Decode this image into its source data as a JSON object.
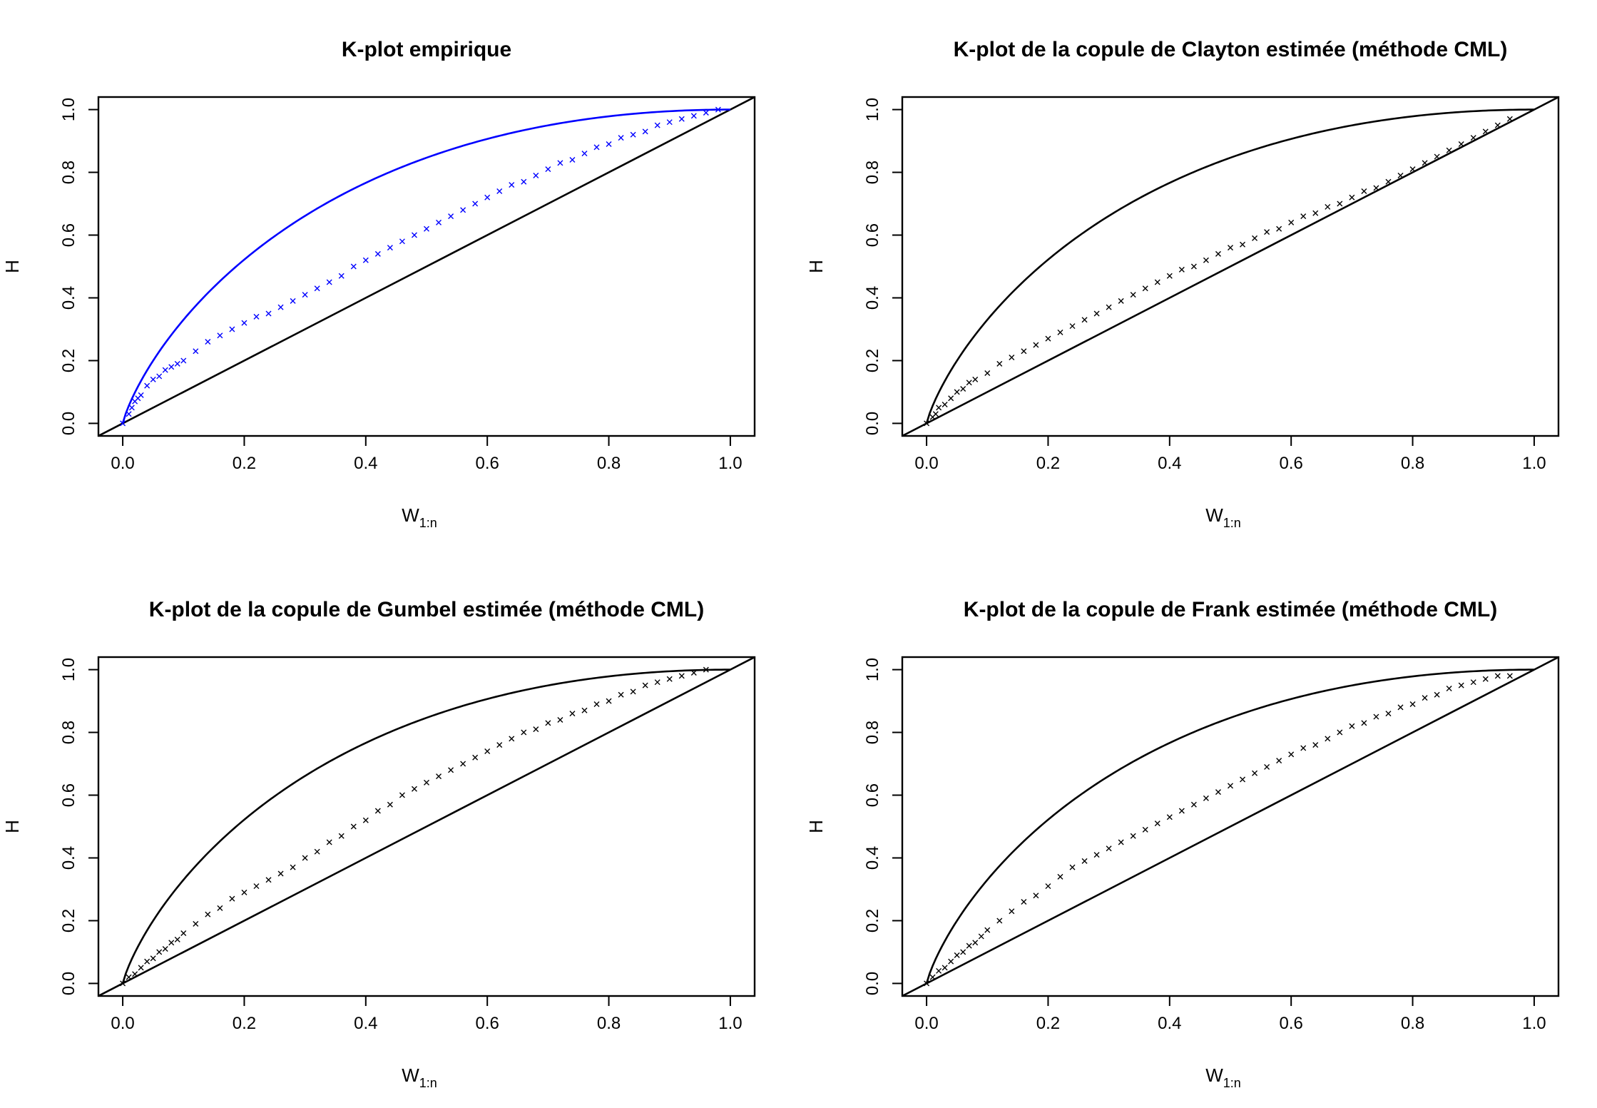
{
  "chart_data": [
    {
      "type": "scatter",
      "title": "K-plot empirique",
      "xlabel": "W",
      "xlabel_sub": "1:n",
      "ylabel": "H",
      "xlim": [
        -0.04,
        1.04
      ],
      "ylim": [
        -0.04,
        1.04
      ],
      "xticks": [
        "0.0",
        "0.2",
        "0.4",
        "0.6",
        "0.8",
        "1.0"
      ],
      "yticks": [
        "0.0",
        "0.2",
        "0.4",
        "0.6",
        "0.8",
        "1.0"
      ],
      "color": "#0000ff",
      "grid": false,
      "reference_lines": [
        "identity",
        "K0 bound"
      ],
      "series": [
        {
          "x": [
            0.0,
            0.01,
            0.015,
            0.02,
            0.025,
            0.03,
            0.04,
            0.05,
            0.06,
            0.07,
            0.08,
            0.09,
            0.1,
            0.12,
            0.14,
            0.16,
            0.18,
            0.2,
            0.22,
            0.24,
            0.26,
            0.28,
            0.3,
            0.32,
            0.34,
            0.36,
            0.38,
            0.4,
            0.42,
            0.44,
            0.46,
            0.48,
            0.5,
            0.52,
            0.54,
            0.56,
            0.58,
            0.6,
            0.62,
            0.64,
            0.66,
            0.68,
            0.7,
            0.72,
            0.74,
            0.76,
            0.78,
            0.8,
            0.82,
            0.84,
            0.86,
            0.88,
            0.9,
            0.92,
            0.94,
            0.96,
            0.98
          ],
          "y": [
            0.0,
            0.03,
            0.05,
            0.07,
            0.08,
            0.09,
            0.12,
            0.14,
            0.15,
            0.17,
            0.18,
            0.19,
            0.2,
            0.23,
            0.26,
            0.28,
            0.3,
            0.32,
            0.34,
            0.35,
            0.37,
            0.39,
            0.41,
            0.43,
            0.45,
            0.47,
            0.5,
            0.52,
            0.54,
            0.56,
            0.58,
            0.6,
            0.62,
            0.64,
            0.66,
            0.68,
            0.7,
            0.72,
            0.74,
            0.76,
            0.77,
            0.79,
            0.81,
            0.83,
            0.84,
            0.86,
            0.88,
            0.89,
            0.91,
            0.92,
            0.93,
            0.95,
            0.96,
            0.97,
            0.98,
            0.99,
            1.0
          ]
        }
      ]
    },
    {
      "type": "scatter",
      "title": "K-plot de la copule de Clayton estimée (méthode CML)",
      "xlabel": "W",
      "xlabel_sub": "1:n",
      "ylabel": "H",
      "xlim": [
        -0.04,
        1.04
      ],
      "ylim": [
        -0.04,
        1.04
      ],
      "xticks": [
        "0.0",
        "0.2",
        "0.4",
        "0.6",
        "0.8",
        "1.0"
      ],
      "yticks": [
        "0.0",
        "0.2",
        "0.4",
        "0.6",
        "0.8",
        "1.0"
      ],
      "color": "#000000",
      "grid": false,
      "reference_lines": [
        "identity",
        "K0 bound"
      ],
      "series": [
        {
          "x": [
            0.0,
            0.01,
            0.015,
            0.02,
            0.03,
            0.04,
            0.05,
            0.06,
            0.07,
            0.08,
            0.1,
            0.12,
            0.14,
            0.16,
            0.18,
            0.2,
            0.22,
            0.24,
            0.26,
            0.28,
            0.3,
            0.32,
            0.34,
            0.36,
            0.38,
            0.4,
            0.42,
            0.44,
            0.46,
            0.48,
            0.5,
            0.52,
            0.54,
            0.56,
            0.58,
            0.6,
            0.62,
            0.64,
            0.66,
            0.68,
            0.7,
            0.72,
            0.74,
            0.76,
            0.78,
            0.8,
            0.82,
            0.84,
            0.86,
            0.88,
            0.9,
            0.92,
            0.94,
            0.96
          ],
          "y": [
            0.0,
            0.02,
            0.03,
            0.05,
            0.06,
            0.08,
            0.1,
            0.11,
            0.13,
            0.14,
            0.16,
            0.19,
            0.21,
            0.23,
            0.25,
            0.27,
            0.29,
            0.31,
            0.33,
            0.35,
            0.37,
            0.39,
            0.41,
            0.43,
            0.45,
            0.47,
            0.49,
            0.5,
            0.52,
            0.54,
            0.56,
            0.57,
            0.59,
            0.61,
            0.62,
            0.64,
            0.66,
            0.67,
            0.69,
            0.7,
            0.72,
            0.74,
            0.75,
            0.77,
            0.79,
            0.81,
            0.83,
            0.85,
            0.87,
            0.89,
            0.91,
            0.93,
            0.95,
            0.97
          ]
        }
      ]
    },
    {
      "type": "scatter",
      "title": "K-plot de la copule de Gumbel estimée (méthode CML)",
      "xlabel": "W",
      "xlabel_sub": "1:n",
      "ylabel": "H",
      "xlim": [
        -0.04,
        1.04
      ],
      "ylim": [
        -0.04,
        1.04
      ],
      "xticks": [
        "0.0",
        "0.2",
        "0.4",
        "0.6",
        "0.8",
        "1.0"
      ],
      "yticks": [
        "0.0",
        "0.2",
        "0.4",
        "0.6",
        "0.8",
        "1.0"
      ],
      "color": "#000000",
      "grid": false,
      "reference_lines": [
        "identity",
        "K0 bound"
      ],
      "series": [
        {
          "x": [
            0.0,
            0.01,
            0.02,
            0.03,
            0.04,
            0.05,
            0.06,
            0.07,
            0.08,
            0.09,
            0.1,
            0.12,
            0.14,
            0.16,
            0.18,
            0.2,
            0.22,
            0.24,
            0.26,
            0.28,
            0.3,
            0.32,
            0.34,
            0.36,
            0.38,
            0.4,
            0.42,
            0.44,
            0.46,
            0.48,
            0.5,
            0.52,
            0.54,
            0.56,
            0.58,
            0.6,
            0.62,
            0.64,
            0.66,
            0.68,
            0.7,
            0.72,
            0.74,
            0.76,
            0.78,
            0.8,
            0.82,
            0.84,
            0.86,
            0.88,
            0.9,
            0.92,
            0.94,
            0.96
          ],
          "y": [
            0.0,
            0.02,
            0.03,
            0.05,
            0.07,
            0.08,
            0.1,
            0.11,
            0.13,
            0.14,
            0.16,
            0.19,
            0.22,
            0.24,
            0.27,
            0.29,
            0.31,
            0.33,
            0.35,
            0.37,
            0.4,
            0.42,
            0.45,
            0.47,
            0.5,
            0.52,
            0.55,
            0.57,
            0.6,
            0.62,
            0.64,
            0.66,
            0.68,
            0.7,
            0.72,
            0.74,
            0.76,
            0.78,
            0.8,
            0.81,
            0.83,
            0.84,
            0.86,
            0.87,
            0.89,
            0.9,
            0.92,
            0.93,
            0.95,
            0.96,
            0.97,
            0.98,
            0.99,
            1.0
          ]
        }
      ]
    },
    {
      "type": "scatter",
      "title": "K-plot de la copule de Frank estimée (méthode CML)",
      "xlabel": "W",
      "xlabel_sub": "1:n",
      "ylabel": "H",
      "xlim": [
        -0.04,
        1.04
      ],
      "ylim": [
        -0.04,
        1.04
      ],
      "xticks": [
        "0.0",
        "0.2",
        "0.4",
        "0.6",
        "0.8",
        "1.0"
      ],
      "yticks": [
        "0.0",
        "0.2",
        "0.4",
        "0.6",
        "0.8",
        "1.0"
      ],
      "color": "#000000",
      "grid": false,
      "reference_lines": [
        "identity",
        "K0 bound"
      ],
      "series": [
        {
          "x": [
            0.0,
            0.01,
            0.02,
            0.03,
            0.04,
            0.05,
            0.06,
            0.07,
            0.08,
            0.09,
            0.1,
            0.12,
            0.14,
            0.16,
            0.18,
            0.2,
            0.22,
            0.24,
            0.26,
            0.28,
            0.3,
            0.32,
            0.34,
            0.36,
            0.38,
            0.4,
            0.42,
            0.44,
            0.46,
            0.48,
            0.5,
            0.52,
            0.54,
            0.56,
            0.58,
            0.6,
            0.62,
            0.64,
            0.66,
            0.68,
            0.7,
            0.72,
            0.74,
            0.76,
            0.78,
            0.8,
            0.82,
            0.84,
            0.86,
            0.88,
            0.9,
            0.92,
            0.94,
            0.96
          ],
          "y": [
            0.0,
            0.02,
            0.04,
            0.05,
            0.07,
            0.09,
            0.1,
            0.12,
            0.13,
            0.15,
            0.17,
            0.2,
            0.23,
            0.26,
            0.28,
            0.31,
            0.34,
            0.37,
            0.39,
            0.41,
            0.43,
            0.45,
            0.47,
            0.49,
            0.51,
            0.53,
            0.55,
            0.57,
            0.59,
            0.61,
            0.63,
            0.65,
            0.67,
            0.69,
            0.71,
            0.73,
            0.75,
            0.76,
            0.78,
            0.8,
            0.82,
            0.83,
            0.85,
            0.86,
            0.88,
            0.89,
            0.91,
            0.92,
            0.94,
            0.95,
            0.96,
            0.97,
            0.98,
            0.98
          ]
        }
      ]
    }
  ]
}
